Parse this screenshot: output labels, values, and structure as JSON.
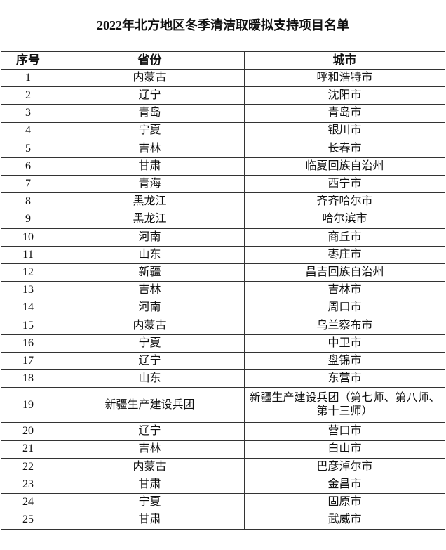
{
  "title": "2022年北方地区冬季清洁取暖拟支持项目名单",
  "headers": {
    "no": "序号",
    "province": "省份",
    "city": "城市"
  },
  "rows": [
    {
      "no": "1",
      "province": "内蒙古",
      "city": "呼和浩特市"
    },
    {
      "no": "2",
      "province": "辽宁",
      "city": "沈阳市"
    },
    {
      "no": "3",
      "province": "青岛",
      "city": "青岛市"
    },
    {
      "no": "4",
      "province": "宁夏",
      "city": "银川市"
    },
    {
      "no": "5",
      "province": "吉林",
      "city": "长春市"
    },
    {
      "no": "6",
      "province": "甘肃",
      "city": "临夏回族自治州"
    },
    {
      "no": "7",
      "province": "青海",
      "city": "西宁市"
    },
    {
      "no": "8",
      "province": "黑龙江",
      "city": "齐齐哈尔市"
    },
    {
      "no": "9",
      "province": "黑龙江",
      "city": "哈尔滨市"
    },
    {
      "no": "10",
      "province": "河南",
      "city": "商丘市"
    },
    {
      "no": "11",
      "province": "山东",
      "city": "枣庄市"
    },
    {
      "no": "12",
      "province": "新疆",
      "city": "昌吉回族自治州"
    },
    {
      "no": "13",
      "province": "吉林",
      "city": "吉林市"
    },
    {
      "no": "14",
      "province": "河南",
      "city": "周口市"
    },
    {
      "no": "15",
      "province": "内蒙古",
      "city": "乌兰察布市"
    },
    {
      "no": "16",
      "province": "宁夏",
      "city": "中卫市"
    },
    {
      "no": "17",
      "province": "辽宁",
      "city": "盘锦市"
    },
    {
      "no": "18",
      "province": "山东",
      "city": "东营市"
    },
    {
      "no": "19",
      "province": "新疆生产建设兵团",
      "city": "新疆生产建设兵团（第七师、第八师、第十三师）"
    },
    {
      "no": "20",
      "province": "辽宁",
      "city": "营口市"
    },
    {
      "no": "21",
      "province": "吉林",
      "city": "白山市"
    },
    {
      "no": "22",
      "province": "内蒙古",
      "city": "巴彦淖尔市"
    },
    {
      "no": "23",
      "province": "甘肃",
      "city": "金昌市"
    },
    {
      "no": "24",
      "province": "宁夏",
      "city": "固原市"
    },
    {
      "no": "25",
      "province": "甘肃",
      "city": "武威市"
    }
  ]
}
